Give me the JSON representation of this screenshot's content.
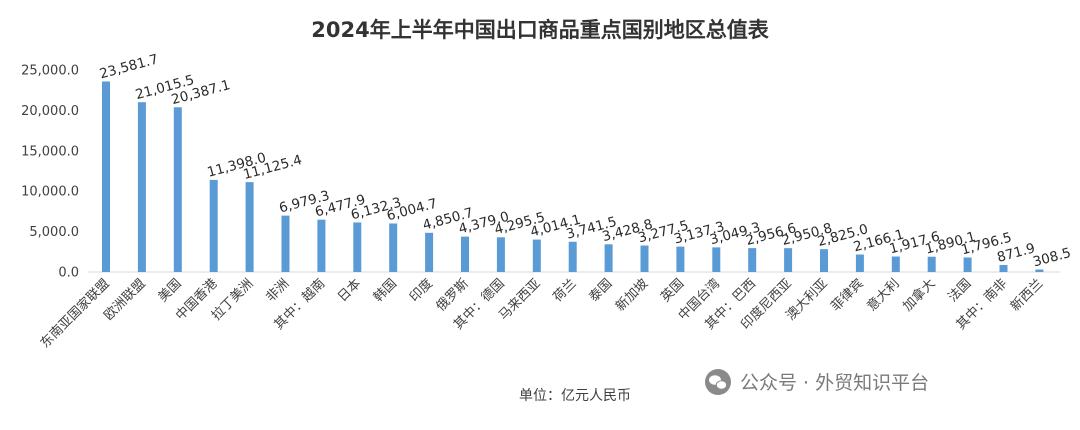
{
  "chart_data": {
    "type": "bar",
    "title": "2024年上半年中国出口商品重点国别地区总值表",
    "unit_label": "单位：亿元人民币",
    "categories": [
      "东南亚国家联盟",
      "欧洲联盟",
      "美国",
      "中国香港",
      "拉丁美洲",
      "非洲",
      "其中：越南",
      "日本",
      "韩国",
      "印度",
      "俄罗斯",
      "其中：德国",
      "马来西亚",
      "荷兰",
      "泰国",
      "新加坡",
      "英国",
      "中国台湾",
      "其中：巴西",
      "印度尼西亚",
      "澳大利亚",
      "菲律宾",
      "意大利",
      "加拿大",
      "法国",
      "其中：南非",
      "新西兰"
    ],
    "values": [
      23581.7,
      21015.5,
      20387.1,
      11398.0,
      11125.4,
      6979.3,
      6477.9,
      6132.3,
      6004.7,
      4850.7,
      4379.0,
      4295.5,
      4014.1,
      3741.5,
      3428.8,
      3277.5,
      3137.3,
      3049.3,
      2956.6,
      2950.8,
      2825.0,
      2166.1,
      1917.6,
      1890.1,
      1796.5,
      871.9,
      308.5
    ],
    "value_labels": [
      "23,581.7",
      "21,015.5",
      "20,387.1",
      "11,398.0",
      "11,125.4",
      "6,979.3",
      "6,477.9",
      "6,132.3",
      "6,004.7",
      "4,850.7",
      "4,379.0",
      "4,295.5",
      "4,014.1",
      "3,741.5",
      "3,428.8",
      "3,277.5",
      "3,137.3",
      "3,049.3",
      "2,956.6",
      "2,950.8",
      "2,825.0",
      "2,166.1",
      "1,917.6",
      "1,890.1",
      "1,796.5",
      "871.9",
      "308.5"
    ],
    "yticks": [
      0,
      5000,
      10000,
      15000,
      20000,
      25000
    ],
    "ytick_labels": [
      "0.0",
      "5,000.0",
      "10,000.0",
      "15,000.0",
      "20,000.0",
      "25,000.0"
    ],
    "ylim": [
      0,
      25000
    ],
    "grid": false,
    "legend": "none",
    "bar_color": "#5b9bd5"
  },
  "watermark": {
    "icon": "wechat-icon",
    "text": "公众号 · 外贸知识平台"
  }
}
